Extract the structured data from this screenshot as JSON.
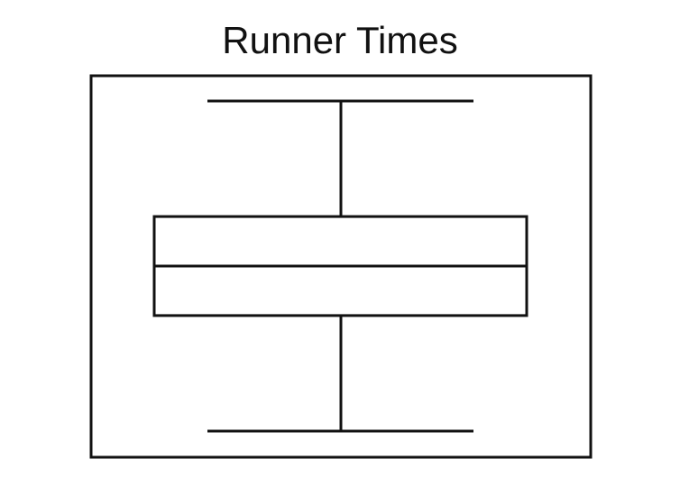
{
  "chart_data": {
    "type": "box",
    "title": "Runner Times",
    "xlabel": "",
    "ylabel": "",
    "grid": false,
    "series": [
      {
        "min": 0,
        "q1": 0.35,
        "median": 0.5,
        "q3": 0.65,
        "max": 1
      }
    ],
    "colors": {
      "stroke": "#111111",
      "fill": "#ffffff",
      "background": "#ffffff"
    }
  }
}
